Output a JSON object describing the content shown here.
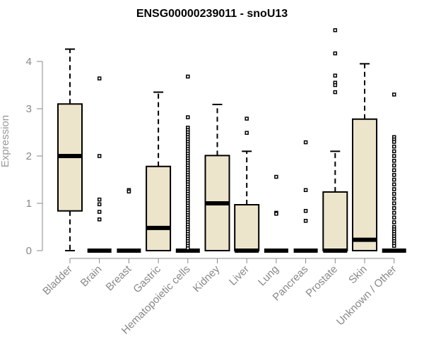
{
  "chart_data": {
    "type": "boxplot",
    "title": "ENSG00000239011 - snoU13",
    "ylabel": "Expression",
    "xlabel": "",
    "ylim": [
      0,
      4.7
    ],
    "yticks": [
      0,
      1,
      2,
      3,
      4
    ],
    "categories": [
      "Bladder",
      "Brain",
      "Breast",
      "Gastric",
      "Hematopoietic cells",
      "Kidney",
      "Liver",
      "Lung",
      "Pancreas",
      "Prostate",
      "Skin",
      "Unknown / Other"
    ],
    "boxes": [
      {
        "category": "Bladder",
        "q1": 0.84,
        "median": 2.0,
        "q3": 3.1,
        "whisker_low": 0.0,
        "whisker_high": 4.26,
        "outliers": []
      },
      {
        "category": "Brain",
        "q1": 0.0,
        "median": 0.0,
        "q3": 0.0,
        "whisker_low": 0.0,
        "whisker_high": 0.0,
        "outliers": [
          3.64,
          2.0,
          1.08,
          0.98,
          0.82,
          0.66
        ]
      },
      {
        "category": "Breast",
        "q1": 0.0,
        "median": 0.0,
        "q3": 0.0,
        "whisker_low": 0.0,
        "whisker_high": 0.0,
        "outliers": [
          1.28,
          1.25
        ]
      },
      {
        "category": "Gastric",
        "q1": 0.0,
        "median": 0.48,
        "q3": 1.78,
        "whisker_low": 0.0,
        "whisker_high": 3.35,
        "outliers": []
      },
      {
        "category": "Hematopoietic cells",
        "q1": 0.0,
        "median": 0.0,
        "q3": 0.0,
        "whisker_low": 0.0,
        "whisker_high": 0.0,
        "outliers": [
          3.68,
          2.82,
          2.6,
          2.55,
          2.5,
          2.45,
          2.4,
          2.35,
          2.3,
          2.25,
          2.2,
          2.15,
          2.1,
          2.05,
          2.0,
          1.95,
          1.9,
          1.85,
          1.8,
          1.75,
          1.7,
          1.65,
          1.6,
          1.55,
          1.5,
          1.45,
          1.4,
          1.35,
          1.3,
          1.25,
          1.2,
          1.15,
          1.1,
          1.05,
          1.0,
          0.95,
          0.9,
          0.85,
          0.8,
          0.75,
          0.7,
          0.65,
          0.6,
          0.55,
          0.5,
          0.45,
          0.4,
          0.35,
          0.3,
          0.25,
          0.2,
          0.15,
          0.1,
          0.05
        ]
      },
      {
        "category": "Kidney",
        "q1": 0.0,
        "median": 1.0,
        "q3": 2.01,
        "whisker_low": 0.0,
        "whisker_high": 3.09,
        "outliers": []
      },
      {
        "category": "Liver",
        "q1": 0.0,
        "median": 0.0,
        "q3": 0.97,
        "whisker_low": 0.0,
        "whisker_high": 2.1,
        "outliers": [
          2.79,
          2.49
        ]
      },
      {
        "category": "Lung",
        "q1": 0.0,
        "median": 0.0,
        "q3": 0.0,
        "whisker_low": 0.0,
        "whisker_high": 0.0,
        "outliers": [
          1.56,
          0.8,
          0.78
        ]
      },
      {
        "category": "Pancreas",
        "q1": 0.0,
        "median": 0.0,
        "q3": 0.0,
        "whisker_low": 0.0,
        "whisker_high": 0.0,
        "outliers": [
          2.29,
          1.28,
          0.84,
          0.63
        ]
      },
      {
        "category": "Prostate",
        "q1": 0.0,
        "median": 0.0,
        "q3": 1.24,
        "whisker_low": 0.0,
        "whisker_high": 2.1,
        "outliers": [
          4.66,
          4.17,
          3.7,
          3.55,
          3.5,
          3.35
        ]
      },
      {
        "category": "Skin",
        "q1": 0.0,
        "median": 0.23,
        "q3": 2.78,
        "whisker_low": 0.0,
        "whisker_high": 3.95,
        "outliers": []
      },
      {
        "category": "Unknown / Other",
        "q1": 0.0,
        "median": 0.0,
        "q3": 0.0,
        "whisker_low": 0.0,
        "whisker_high": 0.0,
        "outliers": [
          3.3,
          2.4,
          2.35,
          2.3,
          2.2,
          2.1,
          2.0,
          1.9,
          1.8,
          1.7,
          1.6,
          1.5,
          1.4,
          1.3,
          1.2,
          1.1,
          1.0,
          0.9,
          0.8,
          0.7,
          0.6,
          0.5,
          0.45,
          0.4,
          0.35,
          0.3,
          0.25,
          0.2,
          0.15,
          0.1
        ]
      }
    ],
    "box_fill": "#ece5cb",
    "box_stroke": "#000000",
    "axis_color": "#888888",
    "grid": false,
    "legend": "none"
  }
}
